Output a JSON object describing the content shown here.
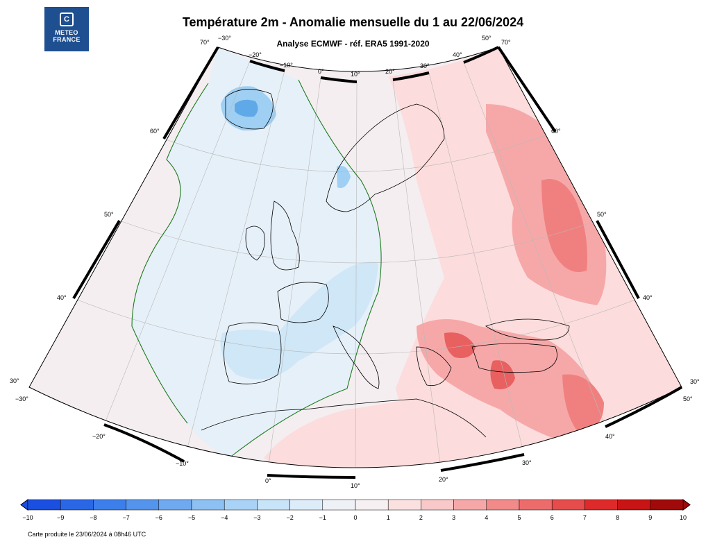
{
  "header": {
    "logo_line1": "METEO",
    "logo_line2": "FRANCE",
    "title": "Température 2m - Anomalie mensuelle du 1 au 22/06/2024",
    "subtitle": "Analyse ECMWF - réf. ERA5 1991-2020"
  },
  "map": {
    "corner_labels": {
      "top_left_lat": "70°",
      "top_left_lon": "−30°",
      "top_right_lon": "50°",
      "top_right_lat": "70°",
      "bottom_left_lat": "30°",
      "bottom_left_lon": "−30°",
      "bottom_right_lat": "30°",
      "bottom_right_lon": "50°"
    },
    "top_lon_labels": [
      "−20°",
      "−10°",
      "0°",
      "10°",
      "20°",
      "30°",
      "40°"
    ],
    "bottom_lon_labels": [
      "−20°",
      "−10°",
      "0°",
      "10°",
      "20°",
      "30°",
      "40°"
    ],
    "left_lat_labels": [
      "60°",
      "50°",
      "40°"
    ],
    "right_lat_labels": [
      "60°",
      "50°",
      "40°"
    ],
    "colors": {
      "cold_light": "#e6f0f8",
      "cold_mid": "#cfe7f7",
      "cold_strong": "#9fcff2",
      "cold_core": "#5fa9e8",
      "neutral": "#f4eef1",
      "warm_light": "#fcdcdc",
      "warm_mid": "#f6a8a8",
      "warm_strong": "#f08080",
      "warm_core": "#e86060",
      "contour_zero": "#1e7a1e",
      "border": "#000000"
    }
  },
  "colorbar": {
    "ticks": [
      "−10",
      "−9",
      "−8",
      "−7",
      "−6",
      "−5",
      "−4",
      "−3",
      "−2",
      "−1",
      "0",
      "1",
      "2",
      "3",
      "4",
      "5",
      "6",
      "7",
      "8",
      "9",
      "10"
    ],
    "colors": [
      "#1a4fe0",
      "#2a67e6",
      "#3d7fea",
      "#5594ec",
      "#6faaf0",
      "#8dc0f3",
      "#a9d3f6",
      "#c8e4f8",
      "#dcecf8",
      "#eef2f6",
      "#f6f0f2",
      "#fbe0e0",
      "#f9c8c8",
      "#f6a8a8",
      "#f28a8a",
      "#ec6c6c",
      "#e64c4c",
      "#de2a2a",
      "#c81414",
      "#a00a0a"
    ]
  },
  "footer": {
    "produced": "Carte produite le 23/06/2024 à 08h46 UTC"
  }
}
